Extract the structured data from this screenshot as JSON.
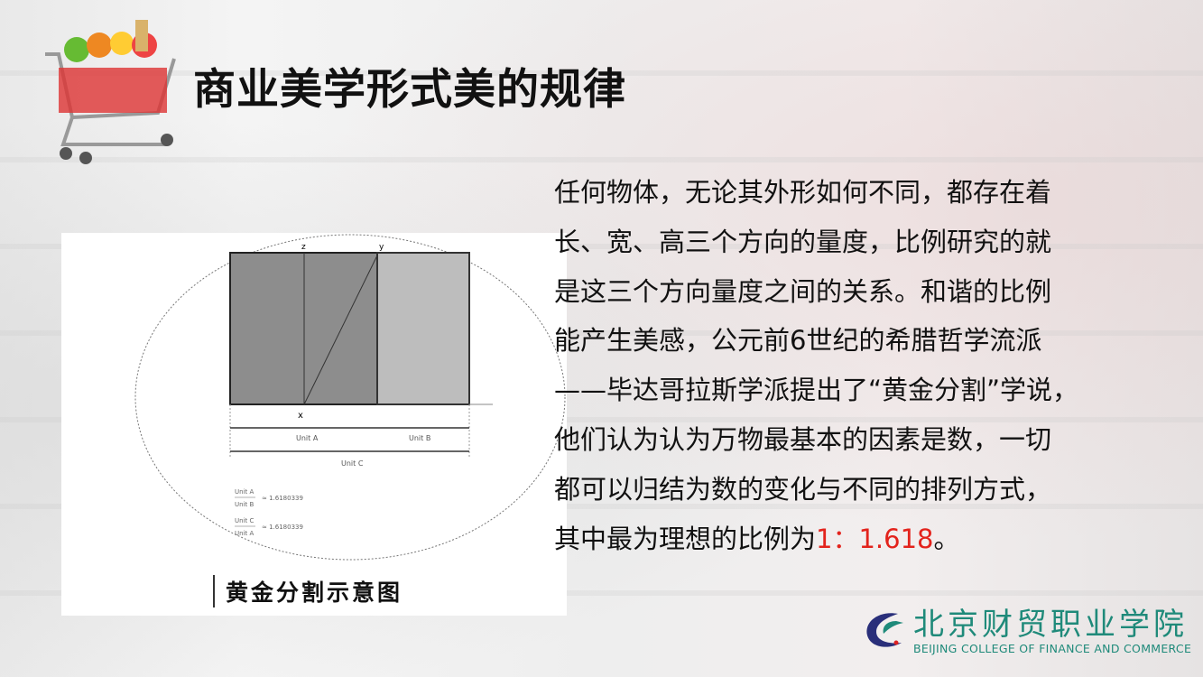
{
  "title": "商业美学形式美的规律",
  "figure": {
    "caption": "黄金分割示意图",
    "labels": {
      "z": "z",
      "y": "y",
      "x": "x",
      "unit_a": "Unit A",
      "unit_b": "Unit B",
      "unit_c": "Unit C"
    },
    "formula1": "≈ 1.6180339",
    "formula2": "≈ 1.6180339"
  },
  "body": {
    "lines": [
      "任何物体，无论其外形如何不同，都存在着",
      "长、宽、高三个方向的量度，比例研究的就",
      "是这三个方向量度之间的关系。和谐的比例",
      "能产生美感，公元前6世纪的希腊哲学流派",
      "——毕达哥拉斯学派提出了“黄金分割”学说，",
      "他们认为认为万物最基本的因素是数，一切",
      "都可以归结为数的变化与不同的排列方式，"
    ],
    "last_line_prefix": "其中最为理想的比例为",
    "ratio": "1：1.618",
    "last_line_suffix": "。",
    "highlight_color": "#e3231c"
  },
  "logo": {
    "name_cn": "北京财贸职业学院",
    "name_en": "BEIJING COLLEGE OF FINANCE AND COMMERCE"
  }
}
